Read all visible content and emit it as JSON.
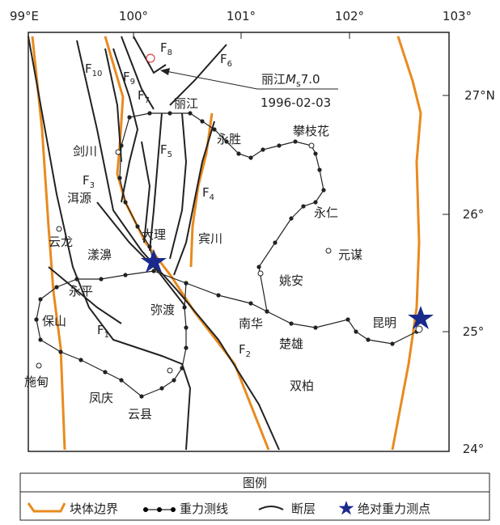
{
  "map": {
    "lon_labels": [
      "99°E",
      "100°",
      "101°",
      "102°",
      "103°"
    ],
    "lat_labels": [
      "27°N",
      "26°",
      "25°",
      "24°"
    ],
    "places": [
      "剑川",
      "洱源",
      "云龙",
      "漾濞",
      "大理",
      "永平",
      "保山",
      "施甸",
      "凤庆",
      "云县",
      "弥渡",
      "南华",
      "楚雄",
      "双柏",
      "姚安",
      "元谋",
      "宾川",
      "永胜",
      "丽江",
      "攀枝花",
      "永仁",
      "昆明"
    ],
    "faults": [
      "F8",
      "F6",
      "F10",
      "F9",
      "F7",
      "F5",
      "F3",
      "F4",
      "F1",
      "F2"
    ],
    "annotation": {
      "name": "丽江",
      "mag_prefix": "M",
      "mag_sub": "s",
      "mag": "7.0",
      "date": "1996-02-03"
    }
  },
  "legend": {
    "title": "图例",
    "items": [
      "块体边界",
      "重力测线",
      "断层",
      "绝对重力测点"
    ]
  }
}
